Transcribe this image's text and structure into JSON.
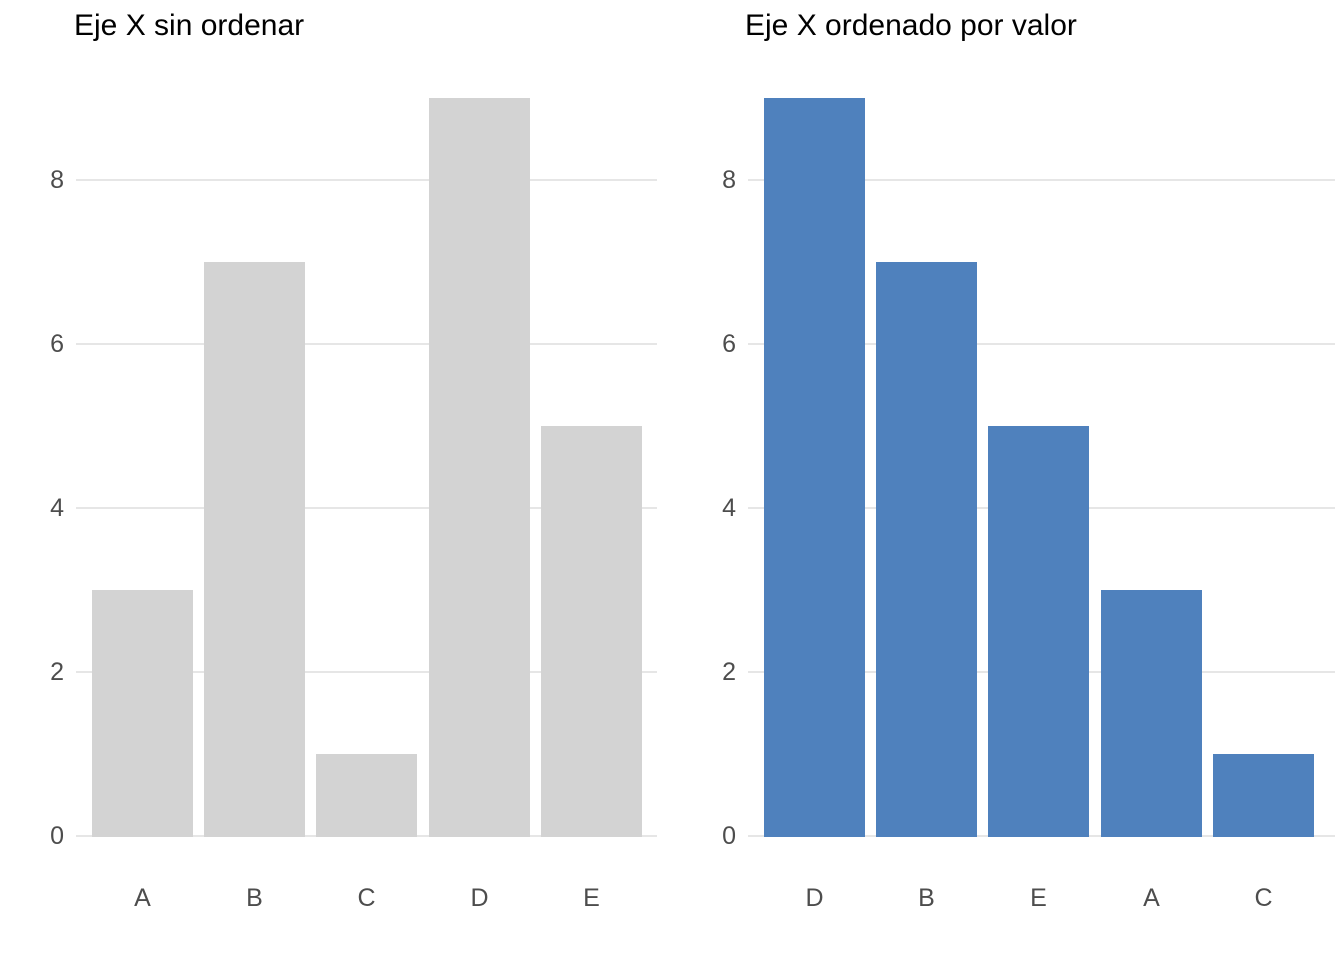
{
  "page": {
    "background": "#ffffff",
    "axis_text_color": "#4d4d4d",
    "gridline_color": "#e6e6e6",
    "title_color": "#000000"
  },
  "chart_data": [
    {
      "type": "bar",
      "title": "Eje X sin ordenar",
      "categories": [
        "A",
        "B",
        "C",
        "D",
        "E"
      ],
      "values": [
        3,
        7,
        1,
        9,
        5
      ],
      "bar_color": "#d3d3d3",
      "xlabel": "",
      "ylabel": "",
      "yticks": [
        0,
        2,
        4,
        6,
        8
      ],
      "ytick_labels": [
        "0",
        "2",
        "4",
        "6",
        "8"
      ],
      "ylim": [
        0,
        9.35
      ],
      "grid": "horizontal-major-only",
      "legend": "none"
    },
    {
      "type": "bar",
      "title": "Eje X ordenado por valor",
      "categories": [
        "D",
        "B",
        "E",
        "A",
        "C"
      ],
      "values": [
        9,
        7,
        5,
        3,
        1
      ],
      "bar_color": "#4f81bd",
      "xlabel": "",
      "ylabel": "",
      "yticks": [
        0,
        2,
        4,
        6,
        8
      ],
      "ytick_labels": [
        "0",
        "2",
        "4",
        "6",
        "8"
      ],
      "ylim": [
        0,
        9.35
      ],
      "grid": "horizontal-major-only",
      "legend": "none"
    }
  ]
}
